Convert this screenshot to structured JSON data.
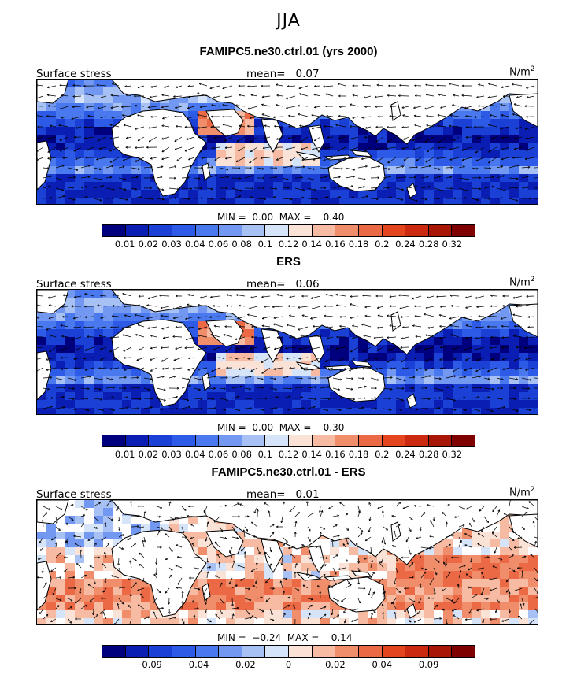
{
  "season": "JJA",
  "panels": [
    {
      "title": "FAMIPC5.ne30.ctrl.01 (yrs 2000)",
      "left_label": "Surface stress",
      "mean_label": "mean=",
      "mean_value": "0.07",
      "unit_text": "N/m",
      "unit_exp": "2",
      "min_label": "MIN =",
      "min_value": "0.00",
      "max_label": "MAX =",
      "max_value": "0.40",
      "kind": "mag",
      "seed": 11
    },
    {
      "title": "ERS",
      "left_label": "Surface stress",
      "mean_label": "mean=",
      "mean_value": "0.06",
      "unit_text": "N/m",
      "unit_exp": "2",
      "min_label": "MIN =",
      "min_value": "0.00",
      "max_label": "MAX =",
      "max_value": "0.30",
      "kind": "mag",
      "seed": 23
    },
    {
      "title": "FAMIPC5.ne30.ctrl.01 - ERS",
      "left_label": "Surface stress",
      "mean_label": "mean=",
      "mean_value": "0.01",
      "unit_text": "N/m",
      "unit_exp": "2",
      "min_label": "MIN =",
      "min_value": "−0.24",
      "max_label": "MAX =",
      "max_value": "0.14",
      "kind": "diff",
      "seed": 37
    }
  ],
  "colorbars": {
    "magnitude": {
      "colors": [
        "#00007f",
        "#0a1eb4",
        "#1b40d6",
        "#2d5ae6",
        "#4a78ee",
        "#7398f2",
        "#a8c1f5",
        "#d6e4fa",
        "#fbe2d6",
        "#f6bba2",
        "#f08d6b",
        "#eb6a45",
        "#e3451e",
        "#cc2a10",
        "#a81606",
        "#7f0000"
      ],
      "labels": [
        "0.01",
        "0.02",
        "0.03",
        "0.04",
        "0.06",
        "0.08",
        "0.1",
        "0.12",
        "0.14",
        "0.16",
        "0.18",
        "0.2",
        "0.24",
        "0.28",
        "0.32"
      ]
    },
    "difference": {
      "colors": [
        "#00007f",
        "#0a1eb4",
        "#1b40d6",
        "#2d5ae6",
        "#4a78ee",
        "#7398f2",
        "#a8c1f5",
        "#d6e4fa",
        "#fbe2d6",
        "#f6bba2",
        "#f08d6b",
        "#eb6a45",
        "#e3451e",
        "#cc2a10",
        "#a81606",
        "#7f0000"
      ],
      "labels": [
        "−0.09",
        "−0.04",
        "−0.02",
        "0",
        "0.02",
        "0.04",
        "0.09"
      ]
    }
  },
  "chart_data": [
    {
      "type": "heatmap",
      "title": "FAMIPC5.ne30.ctrl.01 (yrs 2000)",
      "variable": "Surface stress",
      "units": "N/m2",
      "mean": 0.07,
      "min": 0.0,
      "max": 0.4,
      "contour_levels": [
        0.01,
        0.02,
        0.03,
        0.04,
        0.06,
        0.08,
        0.1,
        0.12,
        0.14,
        0.16,
        0.18,
        0.2,
        0.24,
        0.28,
        0.32
      ],
      "overlay": "wind stress vectors"
    },
    {
      "type": "heatmap",
      "title": "ERS",
      "variable": "Surface stress",
      "units": "N/m2",
      "mean": 0.06,
      "min": 0.0,
      "max": 0.3,
      "contour_levels": [
        0.01,
        0.02,
        0.03,
        0.04,
        0.06,
        0.08,
        0.1,
        0.12,
        0.14,
        0.16,
        0.18,
        0.2,
        0.24,
        0.28,
        0.32
      ],
      "overlay": "wind stress vectors"
    },
    {
      "type": "heatmap",
      "title": "FAMIPC5.ne30.ctrl.01 - ERS",
      "variable": "Surface stress",
      "units": "N/m2",
      "mean": 0.01,
      "min": -0.24,
      "max": 0.14,
      "contour_levels": [
        -0.09,
        -0.04,
        -0.02,
        0,
        0.02,
        0.04,
        0.09
      ],
      "overlay": "wind stress difference vectors"
    }
  ]
}
